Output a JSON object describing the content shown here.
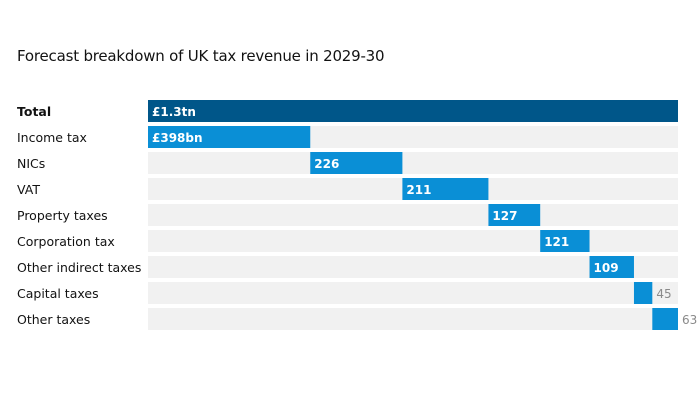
{
  "chart_data": {
    "type": "bar",
    "subtype": "waterfall",
    "title": "Forecast breakdown of UK tax revenue in 2029-30",
    "categories": [
      "Total",
      "Income tax",
      "NICs",
      "VAT",
      "Property taxes",
      "Corporation tax",
      "Other indirect taxes",
      "Capital taxes",
      "Other taxes"
    ],
    "values": [
      1300,
      398,
      226,
      211,
      127,
      121,
      109,
      45,
      63
    ],
    "data_labels": [
      "£1.3tn",
      "£398bn",
      "226",
      "211",
      "127",
      "121",
      "109",
      "45",
      "63"
    ],
    "unit": "£bn",
    "xlim": [
      0,
      1300
    ],
    "grid": false,
    "colors": {
      "total": "#005689",
      "component": "#0a8fd6",
      "track": "#f1f1f1",
      "outside_label": "#8a8a8a"
    }
  }
}
